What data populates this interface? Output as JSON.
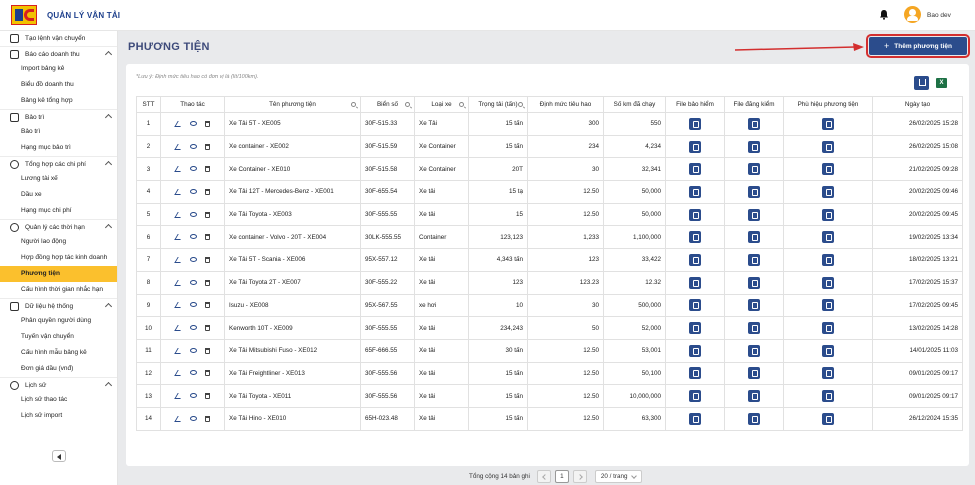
{
  "header": {
    "app_title": "QUẢN LÝ VẬN TẢI",
    "username": "Bao dev",
    "logo": "HC-logo"
  },
  "sidebar": {
    "top_item": "Tạo lệnh vận chuyển",
    "groups": [
      {
        "label": "Báo cáo doanh thu",
        "items": [
          "Import bảng kê",
          "Biểu đồ doanh thu",
          "Bảng kê tổng hợp"
        ]
      },
      {
        "label": "Bảo trì",
        "items": [
          "Bảo trì",
          "Hạng mục bảo trì"
        ]
      },
      {
        "label": "Tổng hợp các chi phí",
        "items": [
          "Lương tài xế",
          "Dầu xe",
          "Hạng mục chi phí"
        ]
      },
      {
        "label": "Quản lý các thời hạn",
        "items": [
          "Người lao động",
          "Hợp đồng hợp tác kinh doanh",
          "Phương tiện",
          "Cấu hình thời gian nhắc hạn"
        ]
      },
      {
        "label": "Dữ liệu hệ thống",
        "items": [
          "Phân quyền người dùng",
          "Tuyến vận chuyển",
          "Cấu hình mẫu bảng kê",
          "Đơn giá dầu (vnđ)"
        ]
      },
      {
        "label": "Lịch sử",
        "items": [
          "Lịch sử thao tác",
          "Lịch sử import"
        ]
      }
    ],
    "active_item": "Phương tiện"
  },
  "page": {
    "title": "PHƯƠNG TIỆN",
    "add_button": "Thêm phương tiện",
    "note": "*Lưu ý: Định mức tiêu hao có đơn vị là (lít/100km)."
  },
  "table": {
    "headers": [
      "STT",
      "Thao tác",
      "Tên phương tiện",
      "Biển số",
      "Loại xe",
      "Trọng tải (tấn)",
      "Định mức tiêu hao",
      "Số km đã chạy",
      "File bảo hiểm",
      "File đăng kiểm",
      "Phù hiệu phương tiện",
      "Ngày tạo"
    ],
    "rows": [
      [
        "1",
        "Xe Tải 5T - XE005",
        "30F-515.33",
        "Xe Tải",
        "15 tấn",
        "300",
        "550",
        "26/02/2025 15:28"
      ],
      [
        "2",
        "Xe container - XE002",
        "30F-515.59",
        "Xe Container",
        "15 tấn",
        "234",
        "4,234",
        "26/02/2025 15:08"
      ],
      [
        "3",
        "Xe Container - XE010",
        "30F-515.58",
        "Xe Container",
        "20T",
        "30",
        "32,341",
        "21/02/2025 09:28"
      ],
      [
        "4",
        "Xe Tải 12T - Mercedes-Benz - XE001",
        "30F-655.54",
        "Xe tải",
        "15 tạ",
        "12.50",
        "50,000",
        "20/02/2025 09:46"
      ],
      [
        "5",
        "Xe Tải Toyota - XE003",
        "30F-555.55",
        "Xe tải",
        "15",
        "12.50",
        "50,000",
        "20/02/2025 09:45"
      ],
      [
        "6",
        "Xe container - Volvo - 20T - XE004",
        "30LK-555.55",
        "Container",
        "123,123",
        "1,233",
        "1,100,000",
        "19/02/2025 13:34"
      ],
      [
        "7",
        "Xe Tải 5T - Scania - XE006",
        "95X-557.12",
        "Xe tải",
        "4,343 tấn",
        "123",
        "33,422",
        "18/02/2025 13:21"
      ],
      [
        "8",
        "Xe Tải Toyota 2T - XE007",
        "30F-555.22",
        "Xe tải",
        "123",
        "123.23",
        "12.32",
        "17/02/2025 15:37"
      ],
      [
        "9",
        "Isuzu - XE008",
        "95X-567.55",
        "xe hơi",
        "10",
        "30",
        "500,000",
        "17/02/2025 09:45"
      ],
      [
        "10",
        "Kenworth 10T - XE009",
        "30F-555.55",
        "Xe tải",
        "234,243",
        "50",
        "52,000",
        "13/02/2025 14:28"
      ],
      [
        "11",
        "Xe Tải Mitsubishi Fuso - XE012",
        "65F-666.55",
        "Xe tải",
        "30 tấn",
        "12.50",
        "53,001",
        "14/01/2025 11:03"
      ],
      [
        "12",
        "Xe Tải Freightliner - XE013",
        "30F-555.56",
        "Xe tải",
        "15 tấn",
        "12.50",
        "50,100",
        "09/01/2025 09:17"
      ],
      [
        "13",
        "Xe Tải Toyota - XE011",
        "30F-555.56",
        "Xe tải",
        "15 tấn",
        "12.50",
        "10,000,000",
        "09/01/2025 09:17"
      ],
      [
        "14",
        "Xe Tải Hino - XE010",
        "65H-023.48",
        "Xe tải",
        "15 tấn",
        "12.50",
        "63,300",
        "26/12/2024 15:35"
      ]
    ]
  },
  "pagination": {
    "total": "Tổng cộng 14 bản ghi",
    "current_page": "1",
    "page_size": "20 / trang"
  },
  "colors": {
    "primary": "#2b4c8c",
    "active": "#fbc02d",
    "highlight": "#d32f2f"
  }
}
